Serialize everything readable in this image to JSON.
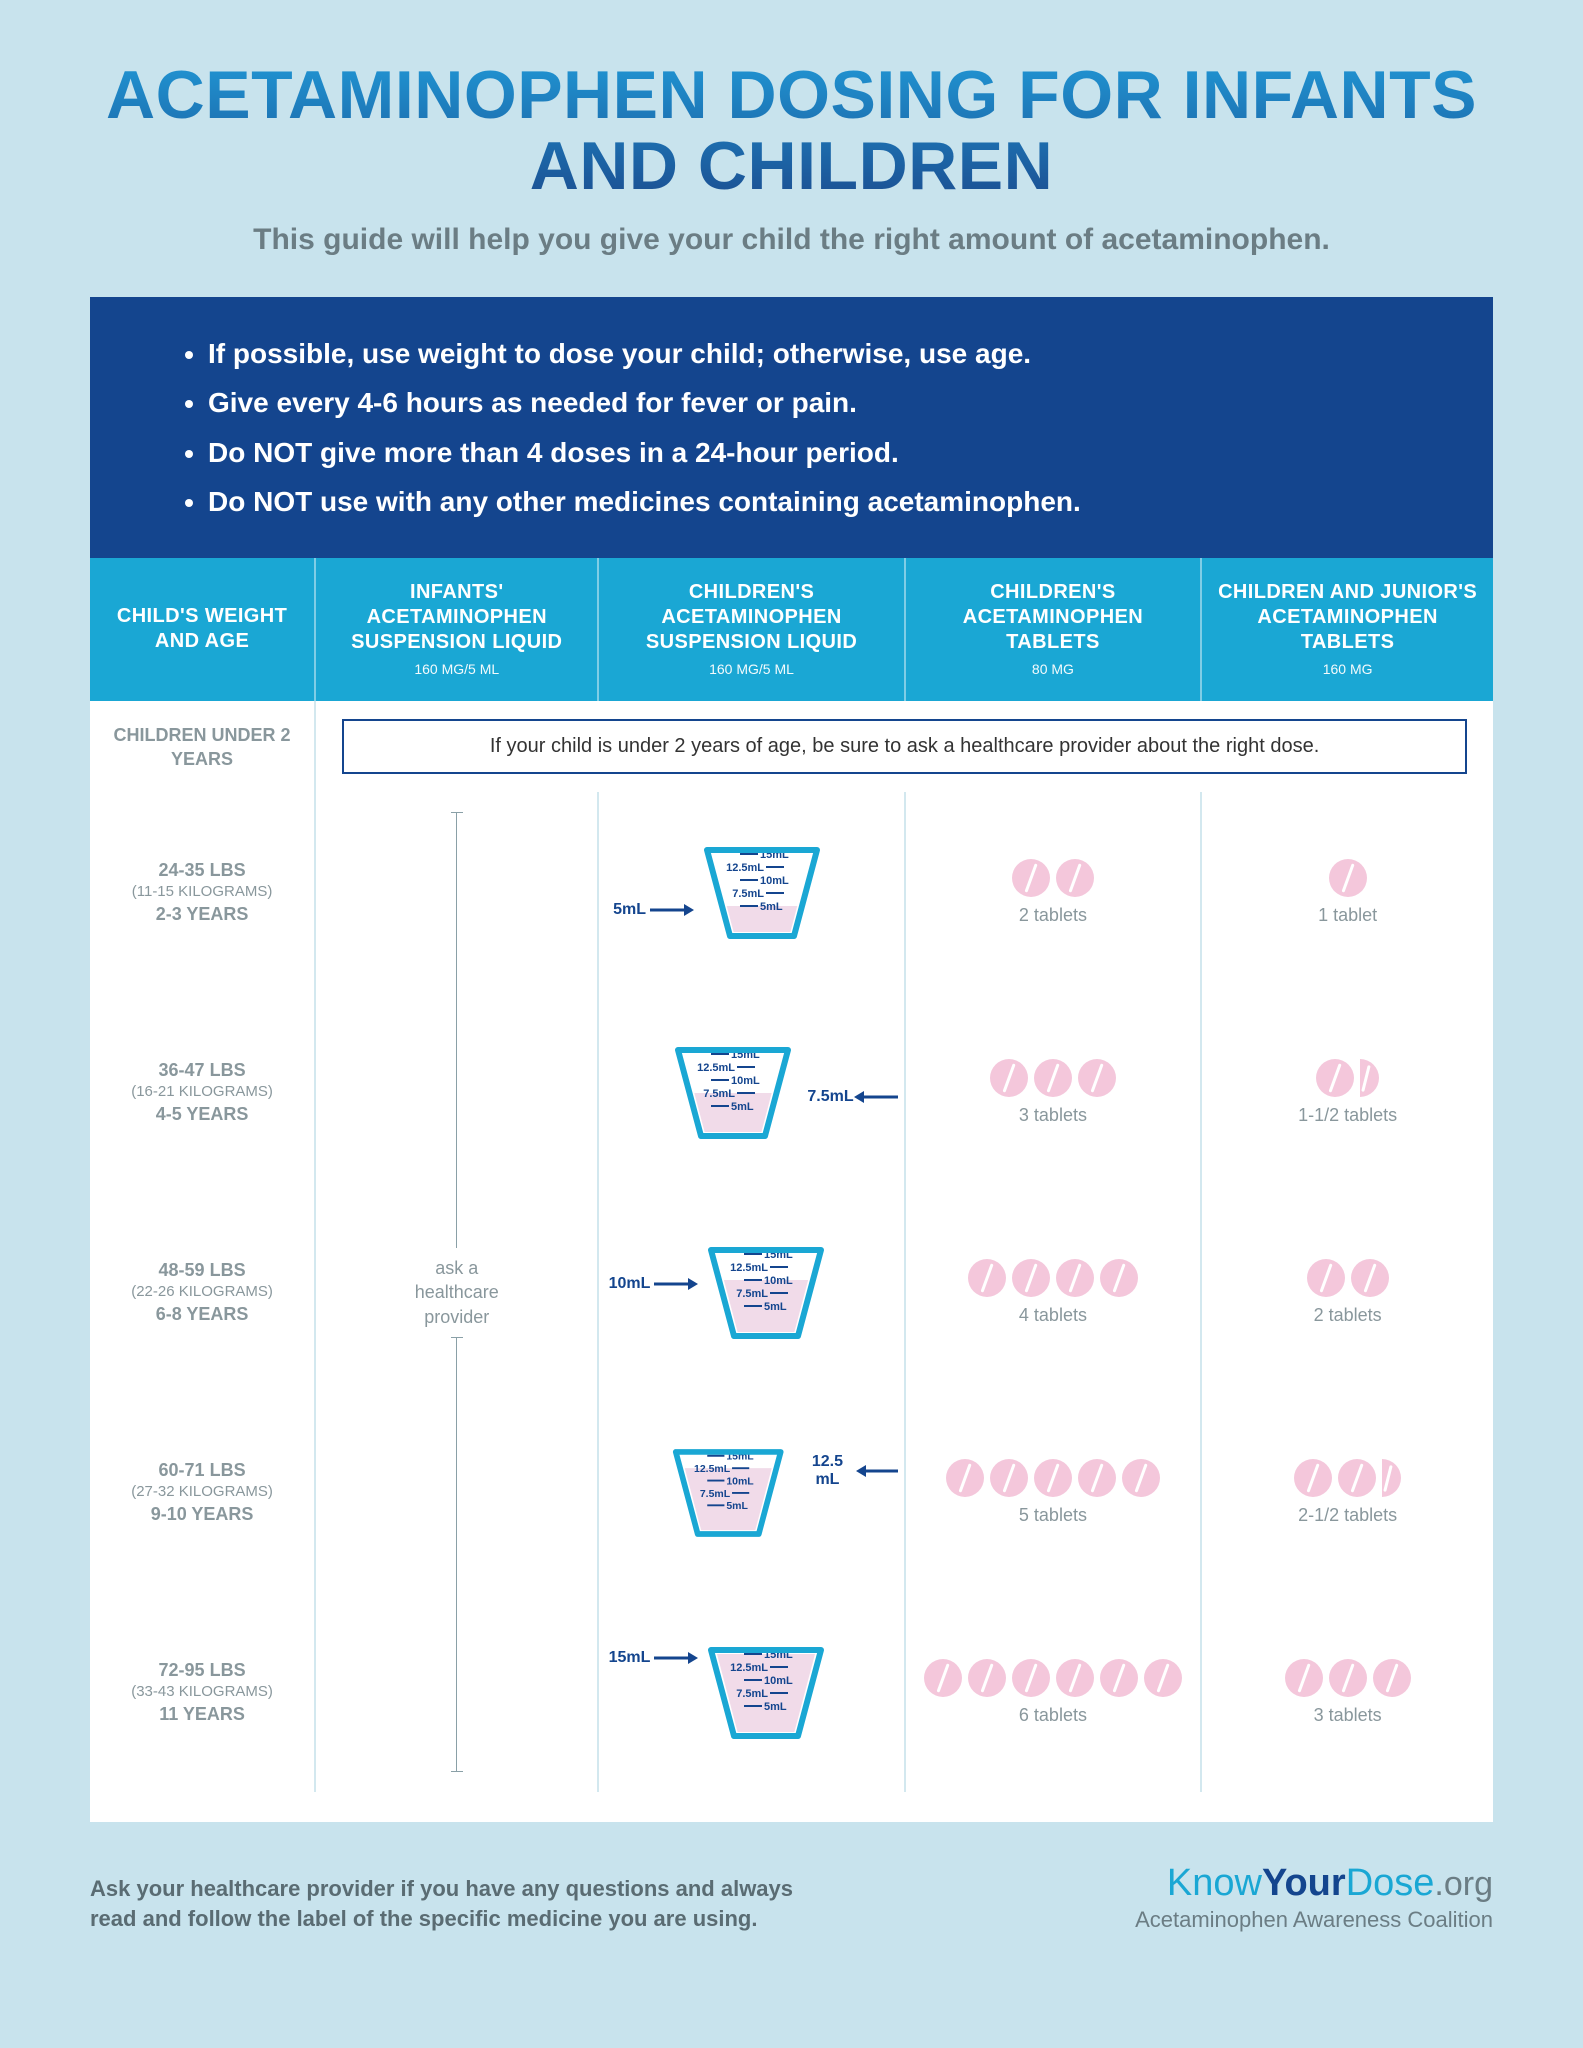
{
  "colors": {
    "page_bg": "#c8e3ed",
    "card_bg": "#ffffff",
    "title_grad_top": "#2095d3",
    "title_grad_bot": "#1b4e91",
    "subtitle": "#6b7d84",
    "bullets_bg": "#14458e",
    "header_bg": "#1aa7d4",
    "header_divider": "#7fcde6",
    "cell_divider": "#d3e8ef",
    "muted_text": "#89979c",
    "cup_stroke": "#1aa7d4",
    "cup_fill": "#f1dbe9",
    "pill_fill": "#f4c7db",
    "arrow": "#14458e"
  },
  "title": "ACETAMINOPHEN DOSING FOR INFANTS AND CHILDREN",
  "subtitle": "This guide will help you give your child the right amount of acetaminophen.",
  "bullets": [
    "If possible, use weight to dose your child; otherwise, use age.",
    "Give every 4-6 hours as needed for fever or pain.",
    "Do NOT give more than 4 doses in a 24-hour period.",
    "Do NOT use with any other medicines containing acetaminophen."
  ],
  "columns": [
    {
      "title": "CHILD'S WEIGHT AND AGE",
      "sub": ""
    },
    {
      "title": "INFANTS' ACETAMINOPHEN SUSPENSION LIQUID",
      "sub": "160 MG/5 ML"
    },
    {
      "title": "CHILDREN'S ACETAMINOPHEN SUSPENSION LIQUID",
      "sub": "160 MG/5 ML"
    },
    {
      "title": "CHILDREN'S ACETAMINOPHEN TABLETS",
      "sub": "80 MG"
    },
    {
      "title": "CHILDREN AND JUNIOR'S ACETAMINOPHEN TABLETS",
      "sub": "160 MG"
    }
  ],
  "under2": {
    "age_label": "CHILDREN UNDER 2 YEARS",
    "message": "If your child is under 2 years of age, be sure to ask a healthcare provider about the right dose."
  },
  "infants_note": "ask a healthcare provider",
  "cup": {
    "marks": [
      "15mL",
      "12.5mL",
      "10mL",
      "7.5mL",
      "5mL"
    ],
    "max_ml": 15
  },
  "rows": [
    {
      "lbs": "24-35 LBS",
      "kg": "(11-15 KILOGRAMS)",
      "age": "2-3 YEARS",
      "liquid_ml": 5,
      "liquid_label": "5mL",
      "arrow_side": "left",
      "tablets80": 2,
      "tablets80_label": "2 tablets",
      "tablets160": 1,
      "tablets160_half": false,
      "tablets160_label": "1 tablet"
    },
    {
      "lbs": "36-47 LBS",
      "kg": "(16-21 KILOGRAMS)",
      "age": "4-5 YEARS",
      "liquid_ml": 7.5,
      "liquid_label": "7.5mL",
      "arrow_side": "right",
      "tablets80": 3,
      "tablets80_label": "3 tablets",
      "tablets160": 1,
      "tablets160_half": true,
      "tablets160_label": "1-1/2 tablets"
    },
    {
      "lbs": "48-59 LBS",
      "kg": "(22-26 KILOGRAMS)",
      "age": "6-8 YEARS",
      "liquid_ml": 10,
      "liquid_label": "10mL",
      "arrow_side": "left",
      "tablets80": 4,
      "tablets80_label": "4 tablets",
      "tablets160": 2,
      "tablets160_half": false,
      "tablets160_label": "2 tablets"
    },
    {
      "lbs": "60-71 LBS",
      "kg": "(27-32 KILOGRAMS)",
      "age": "9-10 YEARS",
      "liquid_ml": 12.5,
      "liquid_label": "12.5 mL",
      "arrow_side": "right",
      "tablets80": 5,
      "tablets80_label": "5 tablets",
      "tablets160": 2,
      "tablets160_half": true,
      "tablets160_label": "2-1/2 tablets"
    },
    {
      "lbs": "72-95 LBS",
      "kg": "(33-43 KILOGRAMS)",
      "age": "11 YEARS",
      "liquid_ml": 15,
      "liquid_label": "15mL",
      "arrow_side": "left",
      "tablets80": 6,
      "tablets80_label": "6 tablets",
      "tablets160": 3,
      "tablets160_half": false,
      "tablets160_label": "3 tablets"
    }
  ],
  "footer": {
    "note": "Ask your healthcare provider if you have any questions and always read and follow the label of the specific medicine you are using.",
    "brand_know": "Know",
    "brand_your": "Your",
    "brand_dose": "Dose",
    "brand_org": ".org",
    "brand_sub": "Acetaminophen Awareness Coalition"
  }
}
